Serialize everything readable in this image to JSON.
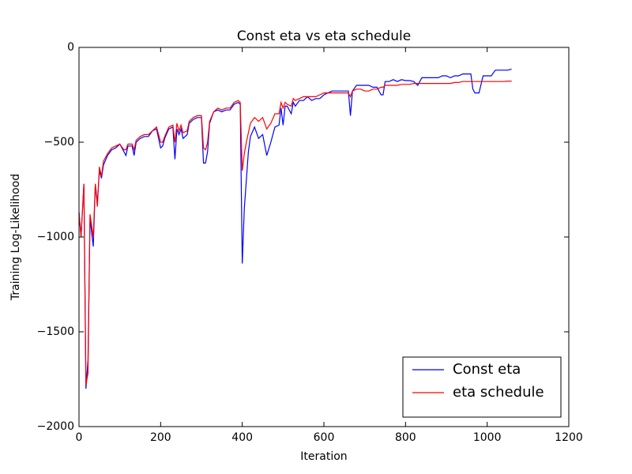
{
  "chart_data": {
    "type": "line",
    "title": "Const eta vs eta schedule",
    "xlabel": "Iteration",
    "ylabel": "Training Log-Likelihood",
    "x": [
      0,
      5,
      12,
      17,
      22,
      27,
      35,
      40,
      45,
      50,
      55,
      60,
      70,
      80,
      90,
      100,
      110,
      115,
      120,
      130,
      135,
      140,
      150,
      160,
      170,
      180,
      190,
      200,
      205,
      210,
      220,
      230,
      235,
      240,
      245,
      250,
      255,
      265,
      270,
      280,
      290,
      300,
      305,
      310,
      315,
      320,
      330,
      340,
      350,
      360,
      370,
      380,
      390,
      395,
      400,
      405,
      410,
      415,
      420,
      430,
      440,
      450,
      460,
      470,
      480,
      490,
      495,
      500,
      505,
      510,
      520,
      525,
      530,
      540,
      550,
      560,
      570,
      580,
      590,
      600,
      610,
      620,
      630,
      640,
      650,
      660,
      665,
      670,
      680,
      690,
      700,
      710,
      720,
      730,
      740,
      745,
      750,
      760,
      770,
      780,
      790,
      800,
      810,
      820,
      830,
      840,
      850,
      860,
      870,
      880,
      890,
      900,
      910,
      920,
      930,
      940,
      950,
      960,
      965,
      970,
      980,
      990,
      1000,
      1010,
      1020,
      1030,
      1040,
      1050,
      1060
    ],
    "series": [
      {
        "name": "Const eta",
        "color": "#0000ff",
        "values": [
          -870,
          -1000,
          -720,
          -1800,
          -1650,
          -900,
          -1050,
          -720,
          -820,
          -650,
          -690,
          -620,
          -570,
          -540,
          -530,
          -510,
          -550,
          -570,
          -520,
          -520,
          -570,
          -500,
          -480,
          -470,
          -470,
          -440,
          -430,
          -530,
          -520,
          -480,
          -430,
          -420,
          -590,
          -430,
          -460,
          -430,
          -480,
          -460,
          -400,
          -380,
          -370,
          -370,
          -610,
          -610,
          -550,
          -400,
          -340,
          -330,
          -340,
          -330,
          -330,
          -300,
          -290,
          -300,
          -1140,
          -850,
          -700,
          -550,
          -470,
          -420,
          -480,
          -460,
          -570,
          -500,
          -420,
          -410,
          -320,
          -410,
          -310,
          -310,
          -350,
          -290,
          -310,
          -280,
          -280,
          -260,
          -280,
          -270,
          -270,
          -250,
          -240,
          -230,
          -230,
          -230,
          -230,
          -230,
          -360,
          -230,
          -200,
          -200,
          -200,
          -200,
          -210,
          -210,
          -250,
          -250,
          -180,
          -180,
          -170,
          -180,
          -170,
          -175,
          -175,
          -180,
          -200,
          -160,
          -160,
          -160,
          -160,
          -160,
          -150,
          -150,
          -160,
          -150,
          -150,
          -140,
          -140,
          -140,
          -220,
          -240,
          -240,
          -150,
          -150,
          -150,
          -120,
          -120,
          -120,
          -120,
          -115
        ]
      },
      {
        "name": "eta schedule",
        "color": "#ff0000",
        "values": [
          -870,
          -1000,
          -720,
          -1780,
          -1720,
          -880,
          -1000,
          -720,
          -840,
          -630,
          -680,
          -600,
          -560,
          -530,
          -520,
          -510,
          -540,
          -540,
          -510,
          -510,
          -540,
          -490,
          -470,
          -460,
          -460,
          -440,
          -420,
          -500,
          -500,
          -470,
          -420,
          -410,
          -500,
          -400,
          -440,
          -410,
          -450,
          -440,
          -390,
          -370,
          -360,
          -360,
          -530,
          -540,
          -500,
          -390,
          -340,
          -320,
          -330,
          -320,
          -320,
          -290,
          -280,
          -290,
          -650,
          -560,
          -500,
          -450,
          -400,
          -370,
          -390,
          -370,
          -430,
          -400,
          -350,
          -350,
          -290,
          -320,
          -290,
          -300,
          -310,
          -270,
          -280,
          -270,
          -260,
          -260,
          -260,
          -260,
          -250,
          -240,
          -240,
          -240,
          -240,
          -240,
          -240,
          -240,
          -260,
          -230,
          -220,
          -220,
          -230,
          -230,
          -220,
          -220,
          -210,
          -210,
          -200,
          -200,
          -200,
          -200,
          -195,
          -195,
          -195,
          -190,
          -190,
          -190,
          -190,
          -190,
          -190,
          -190,
          -190,
          -190,
          -190,
          -185,
          -185,
          -180,
          -180,
          -180,
          -180,
          -180,
          -180,
          -180,
          -180,
          -180,
          -180,
          -180,
          -180,
          -178,
          -178
        ]
      }
    ],
    "xlim": [
      0,
      1200
    ],
    "xticks": [
      0,
      200,
      400,
      600,
      800,
      1000,
      1200
    ],
    "ylim": [
      -2000,
      0
    ],
    "yticks": [
      {
        "value": -2000,
        "label": "−2000"
      },
      {
        "value": -1500,
        "label": "−1500"
      },
      {
        "value": -1000,
        "label": "−1000"
      },
      {
        "value": -500,
        "label": "−500"
      },
      0
    ],
    "legend": "lower right"
  }
}
